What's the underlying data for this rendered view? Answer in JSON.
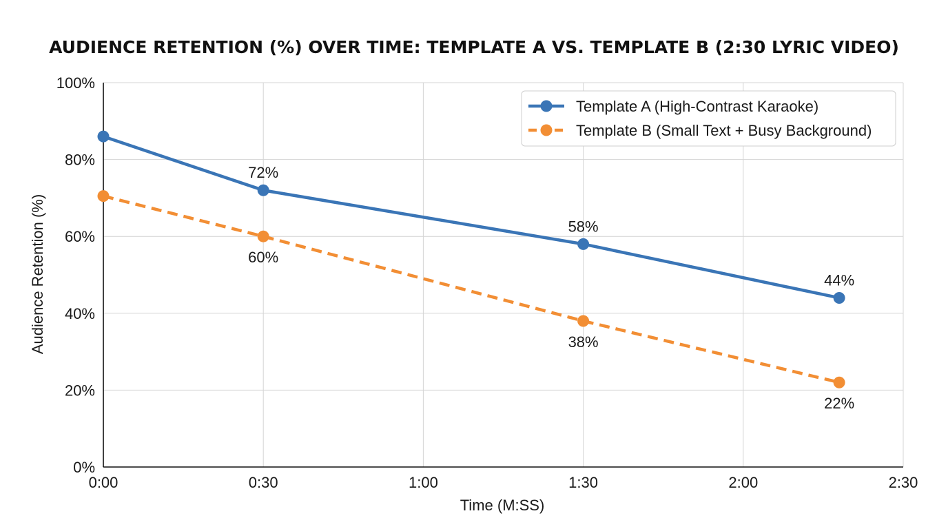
{
  "chart_data": {
    "type": "line",
    "title": "AUDIENCE RETENTION (%) OVER TIME: TEMPLATE A VS. TEMPLATE B (2:30 LYRIC VIDEO)",
    "xlabel": "Time (M:SS)",
    "ylabel": "Audience Retention (%)",
    "xlim": [
      "0:00",
      "2:30"
    ],
    "ylim": [
      0,
      100
    ],
    "x_ticks": [
      "0:00",
      "0:30",
      "1:00",
      "1:30",
      "2:00",
      "2:30"
    ],
    "y_ticks": [
      "0%",
      "20%",
      "40%",
      "60%",
      "80%",
      "100%"
    ],
    "grid": true,
    "legend_position": "top-right",
    "series": [
      {
        "name": "Template A (High-Contrast Karaoke)",
        "color": "#3a75b6",
        "line_style": "solid",
        "x": [
          "0:00",
          "0:30",
          "1:30",
          "2:18"
        ],
        "values": [
          86,
          72,
          58,
          44
        ],
        "data_labels": [
          "",
          "72%",
          "58%",
          "44%"
        ]
      },
      {
        "name": "Template B (Small Text + Busy Background)",
        "color": "#f28e34",
        "line_style": "dashed",
        "x": [
          "0:00",
          "0:30",
          "1:30",
          "2:18"
        ],
        "values": [
          70.5,
          60,
          38,
          22
        ],
        "data_labels": [
          "",
          "60%",
          "38%",
          "22%"
        ]
      }
    ]
  }
}
